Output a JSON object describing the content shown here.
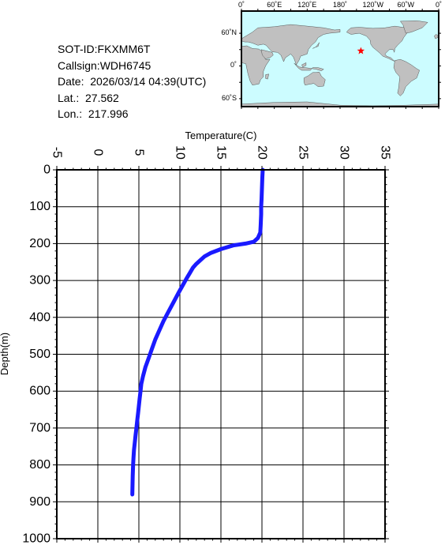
{
  "info": {
    "sot_id": "SOT-ID:FKXMM6T",
    "callsign": "Callsign:WDH6745",
    "date": "Date:  2026/03/14 04:39(UTC)",
    "lat": "Lat.:  27.562",
    "lon": "Lon.:  217.996"
  },
  "map": {
    "lon_labels": [
      "0˚",
      "60˚E",
      "120˚E",
      "180˚",
      "120˚W",
      "60˚W",
      "0˚"
    ],
    "lat_labels": [
      "60˚N",
      "0˚",
      "60˚S"
    ],
    "station": {
      "lon": 217.996,
      "lat": 27.562
    },
    "ocean_color": "#ccfcff",
    "land_color": "#c0c0c0",
    "marker_color": "#ff0000"
  },
  "chart_data": {
    "type": "line",
    "xlabel": "Temperature(C)",
    "ylabel": "Depth(m)",
    "xlim": [
      -5,
      35
    ],
    "ylim": [
      0,
      1000
    ],
    "y_inverted": true,
    "x_ticks": [
      "-5",
      "0",
      "5",
      "10",
      "15",
      "20",
      "25",
      "30",
      "35"
    ],
    "y_ticks": [
      "0",
      "100",
      "200",
      "300",
      "400",
      "500",
      "600",
      "700",
      "800",
      "900",
      "1000"
    ],
    "grid": true,
    "series_color": "#1a1aff",
    "series": [
      {
        "x": [
          20.1,
          20.05,
          20.0,
          19.95,
          19.9,
          19.9,
          19.85,
          19.8,
          19.5,
          19.0,
          18.0,
          16.5,
          15.0,
          13.8,
          13.0,
          12.5,
          12.0,
          11.6,
          11.2,
          10.8,
          10.3,
          9.8,
          9.2,
          8.6,
          8.0,
          7.5,
          7.0,
          6.6,
          6.2,
          5.8,
          5.5,
          5.3,
          5.2,
          5.1,
          5.0,
          4.9,
          4.8,
          4.7,
          4.6,
          4.5,
          4.4,
          4.35,
          4.3,
          4.25,
          4.2
        ],
        "y": [
          0,
          20,
          50,
          80,
          100,
          120,
          150,
          170,
          185,
          195,
          200,
          205,
          215,
          225,
          235,
          245,
          255,
          265,
          280,
          295,
          315,
          335,
          360,
          385,
          410,
          435,
          460,
          485,
          510,
          535,
          560,
          580,
          600,
          620,
          640,
          660,
          680,
          700,
          720,
          740,
          760,
          780,
          800,
          830,
          880
        ]
      }
    ]
  }
}
